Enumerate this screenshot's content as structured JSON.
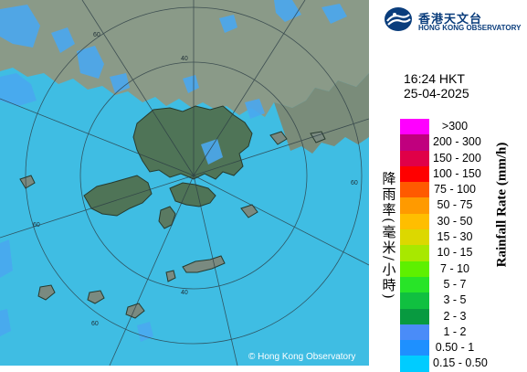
{
  "map": {
    "copyright": "© Hong Kong Observatory",
    "ring_labels": [
      "60",
      "60",
      "60",
      "60",
      "40",
      "40"
    ],
    "colors": {
      "sea": "#3fbde3",
      "land": "#5f7f68",
      "rain_light": "#4aa8f0",
      "ring": "#2b3c44"
    }
  },
  "logo": {
    "name_chinese": "香港天文台",
    "name_english": "HONG KONG OBSERVATORY",
    "icon": "hko-logo-icon"
  },
  "timestamp": {
    "time": "16:24 HKT",
    "date": "25-04-2025"
  },
  "legend": {
    "title_english": "Rainfall Rate (mm/h)",
    "title_chinese": "降雨率(毫米/小時)",
    "items": [
      {
        "label": ">300",
        "color": "#ff00ff"
      },
      {
        "label": "200 - 300",
        "color": "#c0007e"
      },
      {
        "label": "150 - 200",
        "color": "#e00048"
      },
      {
        "label": "100 - 150",
        "color": "#ff0000"
      },
      {
        "label": "75 - 100",
        "color": "#ff5a00"
      },
      {
        "label": "50 - 75",
        "color": "#ff9a00"
      },
      {
        "label": "30 - 50",
        "color": "#ffbe00"
      },
      {
        "label": "15 - 30",
        "color": "#dcd800"
      },
      {
        "label": "10 - 15",
        "color": "#a8e800"
      },
      {
        "label": "7 - 10",
        "color": "#5ef000"
      },
      {
        "label": "5 - 7",
        "color": "#28e428"
      },
      {
        "label": "3 - 5",
        "color": "#10c040"
      },
      {
        "label": "2 - 3",
        "color": "#089a40"
      },
      {
        "label": "1 - 2",
        "color": "#4a8cf8"
      },
      {
        "label": "0.50 - 1",
        "color": "#1e90ff"
      },
      {
        "label": "0.15 - 0.50",
        "color": "#00ccff"
      }
    ]
  }
}
